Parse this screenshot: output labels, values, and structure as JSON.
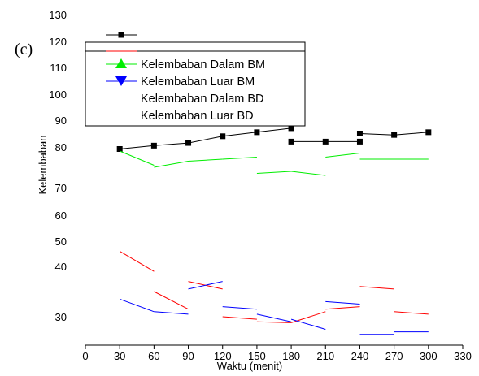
{
  "panel_label": "(c)",
  "chart_data": {
    "type": "line",
    "xlabel": "Waktu  (menit)",
    "ylabel": "Kelembaban",
    "x_ticks": [
      0,
      30,
      60,
      90,
      120,
      150,
      180,
      210,
      240,
      270,
      300,
      330
    ],
    "y_ticks": [
      30,
      40,
      50,
      60,
      70,
      80,
      90,
      100,
      110,
      120,
      130
    ],
    "xlim": [
      0,
      330
    ],
    "legend_position": "top-left",
    "series": [
      {
        "name": "",
        "color": "#000000",
        "marker": "square",
        "values": [
          [
            30,
            79.5
          ],
          [
            60,
            80.5
          ],
          [
            90,
            81.5
          ],
          [
            120,
            84
          ],
          [
            150,
            85.5
          ],
          [
            180,
            87
          ]
        ],
        "values2": [
          [
            180,
            82
          ],
          [
            210,
            82
          ],
          [
            240,
            82
          ]
        ],
        "values3": [
          [
            240,
            85
          ],
          [
            270,
            84.5
          ],
          [
            300,
            85.5
          ]
        ]
      },
      {
        "name": "",
        "color": "#ff0000",
        "marker": "none",
        "segments": [
          [
            [
              30,
              46
            ],
            [
              60,
              39
            ]
          ],
          [
            [
              60,
              35
            ],
            [
              90,
              31.5
            ]
          ],
          [
            [
              90,
              37
            ],
            [
              120,
              35.5
            ]
          ],
          [
            [
              120,
              30
            ],
            [
              150,
              29.5
            ]
          ],
          [
            [
              150,
              29
            ],
            [
              180,
              28.8
            ]
          ],
          [
            [
              180,
              28.8
            ],
            [
              210,
              31
            ]
          ],
          [
            [
              210,
              31.5
            ],
            [
              240,
              32
            ]
          ],
          [
            [
              240,
              36
            ],
            [
              270,
              35.5
            ]
          ],
          [
            [
              270,
              31
            ],
            [
              300,
              30.5
            ]
          ]
        ]
      },
      {
        "name": "Kelembaban Dalam  BM",
        "color": "#00ee00",
        "marker": "triangle-up",
        "segments": [
          [
            [
              30,
              79
            ],
            [
              60,
              75.5
            ]
          ],
          [
            [
              60,
              75
            ],
            [
              90,
              76.5
            ]
          ],
          [
            [
              90,
              76.5
            ],
            [
              120,
              77
            ]
          ],
          [
            [
              120,
              77
            ],
            [
              150,
              77.5
            ]
          ],
          [
            [
              150,
              73.5
            ],
            [
              180,
              74
            ]
          ],
          [
            [
              180,
              74
            ],
            [
              210,
              73
            ]
          ],
          [
            [
              210,
              77.5
            ],
            [
              240,
              78.5
            ]
          ],
          [
            [
              240,
              77
            ],
            [
              270,
              77
            ]
          ],
          [
            [
              270,
              77
            ],
            [
              300,
              77
            ]
          ]
        ]
      },
      {
        "name": "Kelembaban Luar  BM",
        "color": "#0000ff",
        "marker": "triangle-down",
        "segments": [
          [
            [
              30,
              33.5
            ],
            [
              60,
              31
            ]
          ],
          [
            [
              60,
              31
            ],
            [
              90,
              30.5
            ]
          ],
          [
            [
              90,
              35.5
            ],
            [
              120,
              37
            ]
          ],
          [
            [
              120,
              32
            ],
            [
              150,
              31.5
            ]
          ],
          [
            [
              150,
              30.5
            ],
            [
              180,
              29
            ]
          ],
          [
            [
              180,
              29.5
            ],
            [
              210,
              27.5
            ]
          ],
          [
            [
              210,
              33
            ],
            [
              240,
              32.5
            ]
          ],
          [
            [
              240,
              26.5
            ],
            [
              270,
              26.5
            ]
          ],
          [
            [
              270,
              27
            ],
            [
              300,
              27
            ]
          ]
        ]
      },
      {
        "name": "Kelembaban Dalam  BD",
        "color": "#000000",
        "marker": "none",
        "segments": []
      },
      {
        "name": "Kelembaban Luar  BD",
        "color": "#000000",
        "marker": "none",
        "segments": []
      }
    ]
  }
}
